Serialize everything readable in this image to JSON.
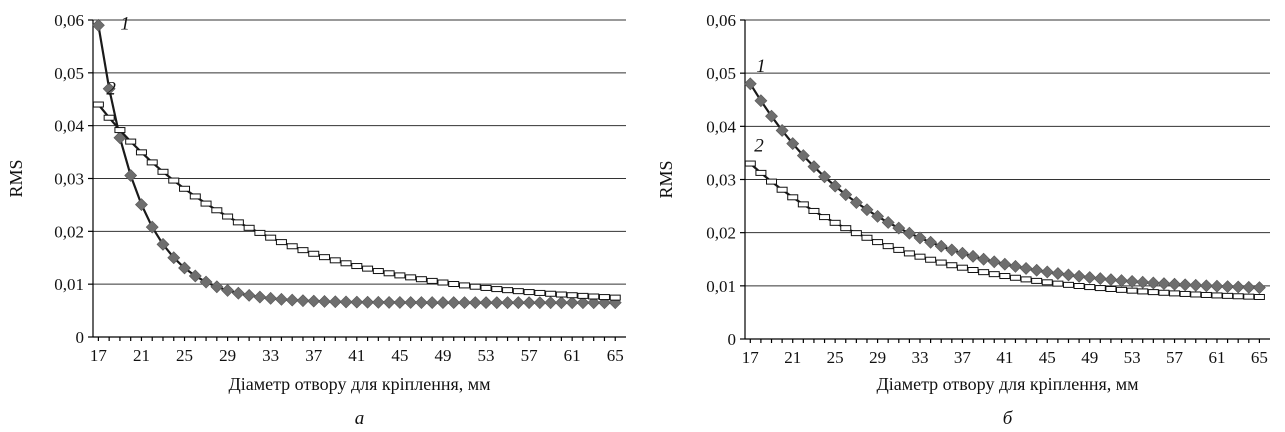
{
  "chart_data": [
    {
      "type": "line",
      "panel_label": "а",
      "xlabel": "Діаметр отвору для кріплення, мм",
      "ylabel": "RMS",
      "xlim": [
        16.5,
        66
      ],
      "ylim": [
        0,
        0.06
      ],
      "x_ticks": [
        "17",
        "21",
        "25",
        "29",
        "33",
        "37",
        "41",
        "45",
        "49",
        "53",
        "57",
        "61",
        "65"
      ],
      "y_ticks": [
        "0",
        "0,01",
        "0,02",
        "0,03",
        "0,04",
        "0,05",
        "0,06"
      ],
      "x_tick_values": [
        17,
        21,
        25,
        29,
        33,
        37,
        41,
        45,
        49,
        53,
        57,
        61,
        65
      ],
      "y_tick_values": [
        0,
        0.01,
        0.02,
        0.03,
        0.04,
        0.05,
        0.06
      ],
      "grid": true,
      "series": [
        {
          "name": "1",
          "marker": "diamond",
          "color": "#6e6e6e",
          "line_color": "#1a1a1a",
          "model": {
            "kind": "exp",
            "a": 0.0525,
            "b": 0.0065,
            "k": 0.26,
            "x0": 17
          }
        },
        {
          "name": "2",
          "marker": "rect",
          "color": "#ffffff",
          "line_color": "#1a1a1a",
          "model": {
            "kind": "exp",
            "a": 0.038,
            "b": 0.006,
            "k": 0.068,
            "x0": 17
          }
        }
      ]
    },
    {
      "type": "line",
      "panel_label": "б",
      "xlabel": "Діаметр отвору для кріплення, мм",
      "ylabel": "RMS",
      "xlim": [
        16.5,
        66
      ],
      "ylim": [
        0,
        0.06
      ],
      "x_ticks": [
        "17",
        "21",
        "25",
        "29",
        "33",
        "37",
        "41",
        "45",
        "49",
        "53",
        "57",
        "61",
        "65"
      ],
      "y_ticks": [
        "0",
        "0,01",
        "0,02",
        "0,03",
        "0,04",
        "0,05",
        "0,06"
      ],
      "x_tick_values": [
        17,
        21,
        25,
        29,
        33,
        37,
        41,
        45,
        49,
        53,
        57,
        61,
        65
      ],
      "y_tick_values": [
        0,
        0.01,
        0.02,
        0.03,
        0.04,
        0.05,
        0.06
      ],
      "grid": true,
      "series": [
        {
          "name": "1",
          "marker": "diamond",
          "color": "#6e6e6e",
          "line_color": "#1a1a1a",
          "model": {
            "kind": "exp",
            "a": 0.039,
            "b": 0.009,
            "k": 0.085,
            "x0": 17
          }
        },
        {
          "name": "2",
          "marker": "rect",
          "color": "#ffffff",
          "line_color": "#1a1a1a",
          "model": {
            "kind": "exp",
            "a": 0.026,
            "b": 0.007,
            "k": 0.07,
            "x0": 17
          }
        }
      ]
    }
  ]
}
